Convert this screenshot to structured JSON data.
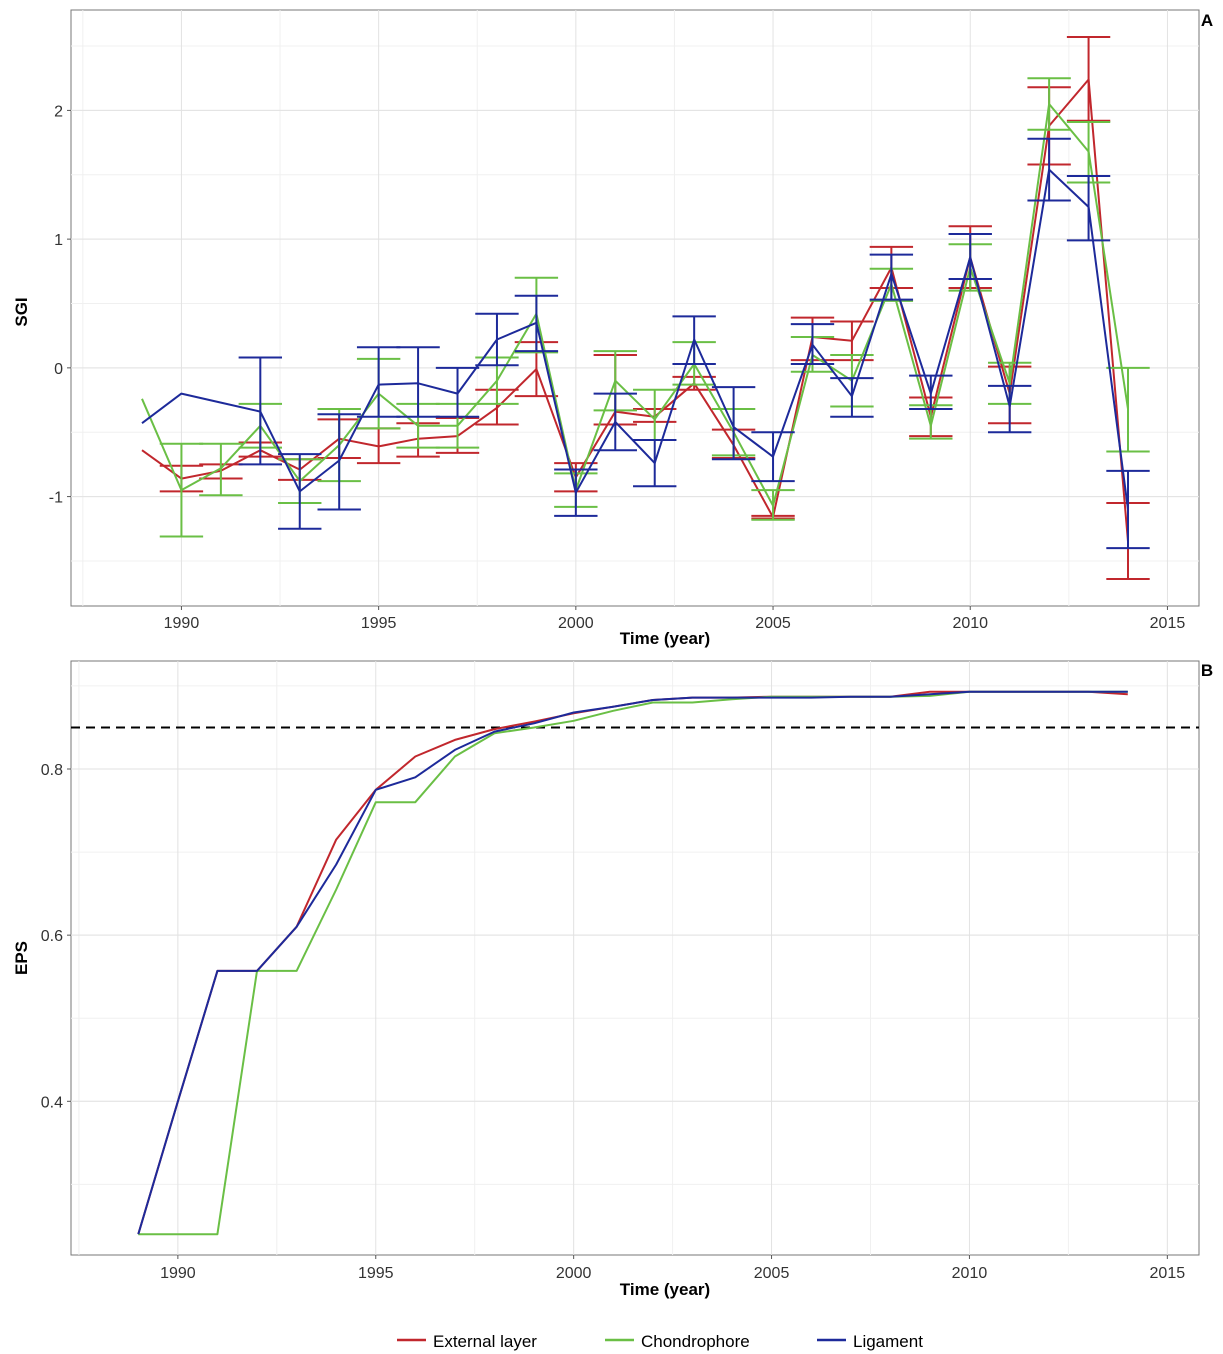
{
  "legend": [
    {
      "label": "External layer",
      "color": "#c1272d"
    },
    {
      "label": "Chondrophore",
      "color": "#6abf45"
    },
    {
      "label": "Ligament",
      "color": "#1d2a9a"
    }
  ],
  "chart_data": [
    {
      "panel_label": "A",
      "type": "line",
      "xlabel": "Time (year)",
      "ylabel": "SGI",
      "xlim": [
        1987.2,
        2015.8
      ],
      "ylim": [
        -1.85,
        2.78
      ],
      "x_ticks": [
        1990,
        1995,
        2000,
        2005,
        2010,
        2015
      ],
      "y_ticks": [
        -1,
        0,
        1,
        2
      ],
      "grid": true,
      "error_bars": true,
      "series": [
        {
          "name": "External layer",
          "color": "#c1272d",
          "x": [
            1989,
            1990,
            1991,
            1992,
            1993,
            1994,
            1995,
            1996,
            1997,
            1998,
            1999,
            2000,
            2001,
            2002,
            2003,
            2004,
            2005,
            2006,
            2007,
            2008,
            2009,
            2010,
            2011,
            2012,
            2013,
            2014
          ],
          "values": [
            -0.64,
            -0.86,
            -0.8,
            -0.64,
            -0.79,
            -0.55,
            -0.61,
            -0.55,
            -0.53,
            -0.31,
            -0.01,
            -0.85,
            -0.34,
            -0.38,
            -0.12,
            -0.6,
            -1.16,
            0.24,
            0.21,
            0.78,
            -0.38,
            0.86,
            -0.2,
            1.88,
            2.24,
            -1.35
          ],
          "err_low": [
            null,
            -0.96,
            -0.86,
            -0.69,
            -0.87,
            -0.7,
            -0.74,
            -0.69,
            -0.66,
            -0.44,
            -0.22,
            -0.96,
            -0.44,
            -0.42,
            -0.17,
            -0.7,
            -1.17,
            0.06,
            0.06,
            0.62,
            -0.53,
            0.62,
            -0.43,
            1.58,
            1.92,
            -1.64
          ],
          "err_high": [
            null,
            -0.76,
            -0.75,
            -0.58,
            -0.71,
            -0.4,
            -0.47,
            -0.43,
            -0.39,
            -0.17,
            0.2,
            -0.74,
            0.1,
            -0.32,
            -0.07,
            -0.48,
            -1.15,
            0.39,
            0.36,
            0.94,
            -0.23,
            1.1,
            0.01,
            2.18,
            2.57,
            -1.05
          ]
        },
        {
          "name": "Chondrophore",
          "color": "#6abf45",
          "x": [
            1989,
            1990,
            1991,
            1992,
            1993,
            1994,
            1995,
            1996,
            1997,
            1998,
            1999,
            2000,
            2001,
            2002,
            2003,
            2004,
            2005,
            2006,
            2007,
            2008,
            2009,
            2010,
            2011,
            2012,
            2013,
            2014
          ],
          "values": [
            -0.24,
            -0.95,
            -0.78,
            -0.45,
            -0.88,
            -0.6,
            -0.2,
            -0.45,
            -0.45,
            -0.1,
            0.42,
            -0.95,
            -0.1,
            -0.4,
            0.03,
            -0.5,
            -1.07,
            0.1,
            -0.1,
            0.65,
            -0.45,
            0.78,
            -0.12,
            2.05,
            1.68,
            -0.32
          ],
          "err_low": [
            null,
            -1.31,
            -0.99,
            -0.62,
            -1.05,
            -0.88,
            -0.47,
            -0.62,
            -0.62,
            -0.28,
            0.12,
            -1.08,
            -0.33,
            -0.56,
            -0.13,
            -0.68,
            -1.18,
            -0.03,
            -0.3,
            0.52,
            -0.55,
            0.6,
            -0.28,
            1.85,
            1.44,
            -0.65
          ],
          "err_high": [
            null,
            -0.59,
            -0.59,
            -0.28,
            -0.71,
            -0.32,
            0.07,
            -0.28,
            -0.28,
            0.08,
            0.7,
            -0.82,
            0.13,
            -0.17,
            0.2,
            -0.32,
            -0.95,
            0.24,
            0.1,
            0.77,
            -0.29,
            0.96,
            0.04,
            2.25,
            1.91,
            0.0
          ]
        },
        {
          "name": "Ligament",
          "color": "#1d2a9a",
          "x": [
            1989,
            1990,
            1991,
            1992,
            1993,
            1994,
            1995,
            1996,
            1997,
            1998,
            1999,
            2000,
            2001,
            2002,
            2003,
            2004,
            2005,
            2006,
            2007,
            2008,
            2009,
            2010,
            2011,
            2012,
            2013,
            2014
          ],
          "values": [
            -0.43,
            -0.2,
            -0.27,
            -0.34,
            -0.96,
            -0.72,
            -0.13,
            -0.12,
            -0.2,
            0.22,
            0.35,
            -0.97,
            -0.42,
            -0.74,
            0.22,
            -0.46,
            -0.69,
            0.18,
            -0.22,
            0.73,
            -0.2,
            0.86,
            -0.3,
            1.54,
            1.25,
            -1.1
          ],
          "err_low": [
            null,
            null,
            null,
            -0.75,
            -1.25,
            -1.1,
            -0.38,
            -0.38,
            -0.38,
            0.02,
            0.13,
            -1.15,
            -0.64,
            -0.92,
            0.03,
            -0.71,
            -0.88,
            0.03,
            -0.38,
            0.53,
            -0.32,
            0.69,
            -0.5,
            1.3,
            0.99,
            -1.4
          ],
          "err_high": [
            null,
            null,
            null,
            0.08,
            -0.67,
            -0.36,
            0.16,
            0.16,
            0.0,
            0.42,
            0.56,
            -0.79,
            -0.2,
            -0.56,
            0.4,
            -0.15,
            -0.5,
            0.34,
            -0.08,
            0.88,
            -0.06,
            1.04,
            -0.14,
            1.78,
            1.49,
            -0.8
          ]
        }
      ]
    },
    {
      "panel_label": "B",
      "type": "line",
      "xlabel": "Time (year)",
      "ylabel": "EPS",
      "xlim": [
        1987.3,
        2015.8
      ],
      "ylim": [
        0.215,
        0.93
      ],
      "x_ticks": [
        1990,
        1995,
        2000,
        2005,
        2010,
        2015
      ],
      "y_ticks": [
        0.4,
        0.6,
        0.8
      ],
      "grid": true,
      "threshold": 0.85,
      "series": [
        {
          "name": "External layer",
          "color": "#c1272d",
          "x": [
            1989,
            1990,
            1991,
            1992,
            1993,
            1994,
            1995,
            1996,
            1997,
            1998,
            1999,
            2000,
            2001,
            2002,
            2003,
            2004,
            2005,
            2006,
            2007,
            2008,
            2009,
            2010,
            2011,
            2012,
            2013,
            2014
          ],
          "values": [
            0.24,
            0.4,
            0.557,
            0.557,
            0.61,
            0.715,
            0.775,
            0.815,
            0.835,
            0.848,
            0.857,
            0.867,
            0.875,
            0.883,
            0.886,
            0.886,
            0.887,
            0.887,
            0.887,
            0.887,
            0.893,
            0.893,
            0.893,
            0.893,
            0.893,
            0.89
          ]
        },
        {
          "name": "Chondrophore",
          "color": "#6abf45",
          "x": [
            1989,
            1990,
            1991,
            1992,
            1993,
            1994,
            1995,
            1996,
            1997,
            1998,
            1999,
            2000,
            2001,
            2002,
            2003,
            2004,
            2005,
            2006,
            2007,
            2008,
            2009,
            2010,
            2011,
            2012,
            2013,
            2014
          ],
          "values": [
            0.24,
            0.24,
            0.24,
            0.557,
            0.557,
            0.655,
            0.76,
            0.76,
            0.815,
            0.843,
            0.85,
            0.858,
            0.87,
            0.88,
            0.88,
            0.884,
            0.887,
            0.887,
            0.887,
            0.887,
            0.888,
            0.893,
            0.893,
            0.893,
            0.893,
            0.893
          ]
        },
        {
          "name": "Ligament",
          "color": "#1d2a9a",
          "x": [
            1989,
            1990,
            1991,
            1992,
            1993,
            1994,
            1995,
            1996,
            1997,
            1998,
            1999,
            2000,
            2001,
            2002,
            2003,
            2004,
            2005,
            2006,
            2007,
            2008,
            2009,
            2010,
            2011,
            2012,
            2013,
            2014
          ],
          "values": [
            0.24,
            0.4,
            0.557,
            0.557,
            0.61,
            0.685,
            0.775,
            0.79,
            0.823,
            0.845,
            0.855,
            0.868,
            0.875,
            0.883,
            0.886,
            0.886,
            0.886,
            0.886,
            0.887,
            0.887,
            0.89,
            0.893,
            0.893,
            0.893,
            0.893,
            0.893
          ]
        }
      ]
    }
  ]
}
